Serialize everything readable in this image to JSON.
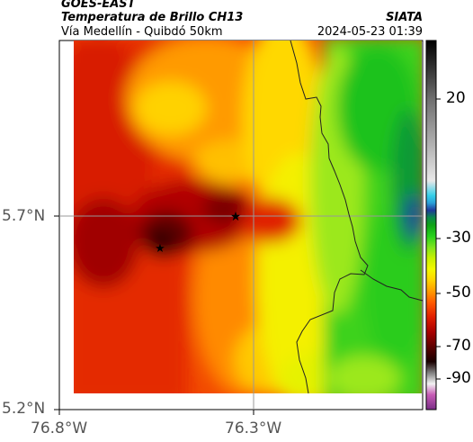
{
  "header": {
    "satellite": "GOES-EAST",
    "product": "Temperatura de Brillo CH13",
    "region": "Vía Medellín - Quibdó 50km",
    "org": "SIATA",
    "datetime": "2024-05-23 01:39"
  },
  "map": {
    "lat_labels": [
      "5.7°N",
      "5.2°N"
    ],
    "lon_labels": [
      "76.8°W",
      "76.3°W"
    ],
    "markers": [
      "star-marker-east",
      "star-marker-west"
    ]
  },
  "colorbar": {
    "tick_labels": [
      "20",
      "-30",
      "-50",
      "-70",
      "-90"
    ],
    "colors": [
      "#7a2e86",
      "#c75bb5",
      "#f2f2f2",
      "#7f7f7f",
      "#1a0000",
      "#5c0000",
      "#a80000",
      "#e01d00",
      "#ff5a00",
      "#ff9a00",
      "#ffd200",
      "#f4f800",
      "#c8f000",
      "#7ee41e",
      "#27d21c",
      "#0fa316",
      "#0c8a4b",
      "#1f3a9a",
      "#2aa0d8",
      "#35d0e8",
      "#e8e8e8",
      "#b0b0b0",
      "#707070",
      "#303030",
      "#000000"
    ]
  }
}
